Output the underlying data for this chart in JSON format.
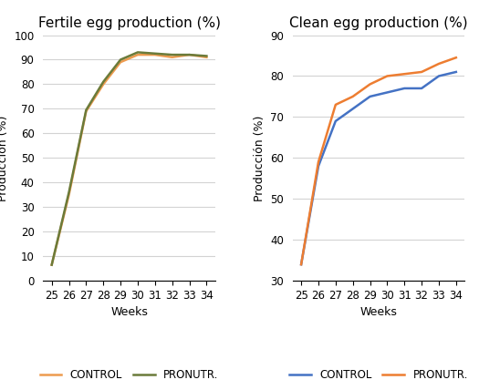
{
  "weeks": [
    25,
    26,
    27,
    28,
    29,
    30,
    31,
    32,
    33,
    34
  ],
  "fertile_control": [
    6.5,
    35,
    69,
    80,
    89,
    92,
    92,
    91,
    92,
    91
  ],
  "fertile_pronutr": [
    6.5,
    36,
    69.5,
    81,
    90,
    93,
    92.5,
    92,
    92,
    91.5
  ],
  "clean_control": [
    34,
    58,
    69,
    72,
    75,
    76,
    77,
    77,
    80,
    81
  ],
  "clean_pronutr": [
    34,
    59,
    73,
    75,
    78,
    80,
    80.5,
    81,
    83,
    84.5
  ],
  "fertile_title": "Fertile egg production (%)",
  "clean_title": "Clean egg production (%)",
  "ylabel": "Producción (%)",
  "xlabel": "Weeks",
  "fertile_ylim": [
    0,
    100
  ],
  "fertile_yticks": [
    0,
    10,
    20,
    30,
    40,
    50,
    60,
    70,
    80,
    90,
    100
  ],
  "clean_ylim": [
    30,
    90
  ],
  "clean_yticks": [
    30,
    40,
    50,
    60,
    70,
    80,
    90
  ],
  "control_label": "CONTROL",
  "pronutr_label": "PRONUTR.",
  "fertile_control_color": "#ED9B4F",
  "fertile_pronutr_color": "#6B7B3A",
  "clean_control_color": "#4472C4",
  "clean_pronutr_color": "#ED7D31",
  "bg_color": "#FFFFFF",
  "grid_color": "#D3D3D3",
  "title_fontsize": 11,
  "label_fontsize": 9,
  "tick_fontsize": 8.5,
  "legend_fontsize": 8.5,
  "line_width": 1.8
}
